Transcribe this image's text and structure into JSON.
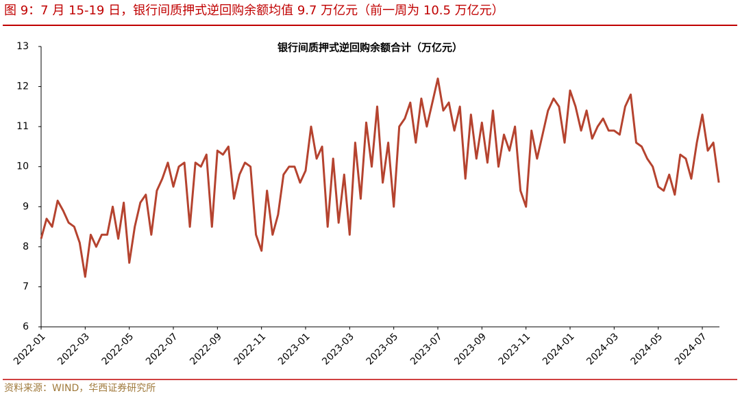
{
  "header": {
    "title": "图 9：7 月 15-19 日，银行间质押式逆回购余额均值 9.7 万亿元（前一周为 10.5 万亿元）"
  },
  "chart_data": {
    "type": "line",
    "title": "银行间质押式逆回购余额合计（万亿元）",
    "categories": [
      "2022-01",
      null,
      null,
      null,
      null,
      null,
      null,
      null,
      "2022-03",
      null,
      null,
      null,
      null,
      null,
      null,
      null,
      "2022-05",
      null,
      null,
      null,
      null,
      null,
      null,
      null,
      "2022-07",
      null,
      null,
      null,
      null,
      null,
      null,
      null,
      "2022-09",
      null,
      null,
      null,
      null,
      null,
      null,
      null,
      "2022-11",
      null,
      null,
      null,
      null,
      null,
      null,
      null,
      "2023-01",
      null,
      null,
      null,
      null,
      null,
      null,
      null,
      "2023-03",
      null,
      null,
      null,
      null,
      null,
      null,
      null,
      "2023-05",
      null,
      null,
      null,
      null,
      null,
      null,
      null,
      "2023-07",
      null,
      null,
      null,
      null,
      null,
      null,
      null,
      "2023-09",
      null,
      null,
      null,
      null,
      null,
      null,
      null,
      "2023-11",
      null,
      null,
      null,
      null,
      null,
      null,
      null,
      "2024-01",
      null,
      null,
      null,
      null,
      null,
      null,
      null,
      "2024-03",
      null,
      null,
      null,
      null,
      null,
      null,
      null,
      "2024-05",
      null,
      null,
      null,
      null,
      null,
      null,
      null,
      "2024-07",
      null,
      null,
      null
    ],
    "series": [
      {
        "name": null,
        "color": "#b5432f",
        "values": [
          8.2,
          8.7,
          8.5,
          9.15,
          8.9,
          8.6,
          8.5,
          8.1,
          7.25,
          8.3,
          8.0,
          8.3,
          8.3,
          9.0,
          8.2,
          9.1,
          7.6,
          8.5,
          9.1,
          9.3,
          8.3,
          9.4,
          9.7,
          10.1,
          9.5,
          10.0,
          10.1,
          8.5,
          10.1,
          10.0,
          10.3,
          8.5,
          10.4,
          10.3,
          10.5,
          9.2,
          9.8,
          10.1,
          10.0,
          8.3,
          7.9,
          9.4,
          8.3,
          8.8,
          9.8,
          10.0,
          10.0,
          9.6,
          9.9,
          11.0,
          10.2,
          10.5,
          8.5,
          10.2,
          8.6,
          9.8,
          8.3,
          10.6,
          9.2,
          11.1,
          10.0,
          11.5,
          9.6,
          10.6,
          9.0,
          11.0,
          11.2,
          11.6,
          10.6,
          11.7,
          11.0,
          11.6,
          12.2,
          11.4,
          11.6,
          10.9,
          11.5,
          9.7,
          11.3,
          10.2,
          11.1,
          10.1,
          11.4,
          10.0,
          10.8,
          10.4,
          11.0,
          9.4,
          9.0,
          10.9,
          10.2,
          10.8,
          11.4,
          11.7,
          11.5,
          10.6,
          11.9,
          11.5,
          10.9,
          11.4,
          10.7,
          11.0,
          11.2,
          10.9,
          10.9,
          10.8,
          11.5,
          11.8,
          10.6,
          10.5,
          10.2,
          10.0,
          9.5,
          9.4,
          9.8,
          9.3,
          10.3,
          10.2,
          9.7,
          10.6,
          11.3,
          10.4,
          10.6,
          9.6
        ]
      }
    ],
    "ylim": [
      6,
      13
    ],
    "yticks": [
      6,
      7,
      8,
      9,
      10,
      11,
      12,
      13
    ]
  },
  "source": "资料来源：WIND，华西证券研究所"
}
